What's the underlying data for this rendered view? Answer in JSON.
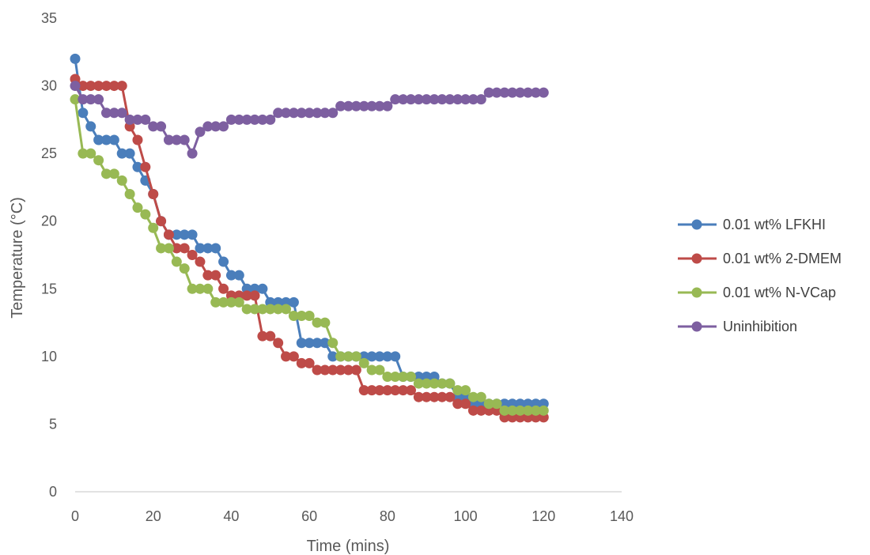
{
  "chart_data": {
    "type": "line",
    "title": "",
    "xlabel": "Time (mins)",
    "ylabel": "Temperature (°C)",
    "xlim": [
      0,
      140
    ],
    "ylim": [
      0,
      35
    ],
    "xticks": [
      "0",
      "20",
      "40",
      "60",
      "80",
      "100",
      "120",
      "140"
    ],
    "yticks": [
      "0",
      "5",
      "10",
      "15",
      "20",
      "25",
      "30",
      "35"
    ],
    "grid": false,
    "legend_position": "right",
    "series": [
      {
        "name": "0.01 wt% LFKHI",
        "color": "#4a7ebb",
        "x": [
          0,
          2,
          4,
          6,
          8,
          10,
          12,
          14,
          16,
          18,
          20,
          22,
          24,
          26,
          28,
          30,
          32,
          34,
          36,
          38,
          40,
          42,
          44,
          46,
          48,
          50,
          52,
          54,
          56,
          58,
          60,
          62,
          64,
          66,
          68,
          70,
          72,
          74,
          76,
          78,
          80,
          82,
          84,
          86,
          88,
          90,
          92,
          94,
          96,
          98,
          100,
          102,
          104,
          106,
          108,
          110,
          112,
          114,
          116,
          118,
          120
        ],
        "y": [
          32,
          28,
          27,
          26,
          26,
          26,
          25,
          25,
          24,
          23,
          22,
          20,
          19,
          19,
          19,
          19,
          18,
          18,
          18,
          17,
          16,
          16,
          15,
          15,
          15,
          14,
          14,
          14,
          14,
          11,
          11,
          11,
          11,
          10,
          10,
          10,
          10,
          10,
          10,
          10,
          10,
          10,
          8.5,
          8.5,
          8.5,
          8.5,
          8.5,
          8,
          8,
          7,
          7,
          6.5,
          6.5,
          6.5,
          6.5,
          6.5,
          6.5,
          6.5,
          6.5,
          6.5,
          6.5
        ]
      },
      {
        "name": "0.01 wt% 2-DMEM",
        "color": "#be4b48",
        "x": [
          0,
          2,
          4,
          6,
          8,
          10,
          12,
          14,
          16,
          18,
          20,
          22,
          24,
          26,
          28,
          30,
          32,
          34,
          36,
          38,
          40,
          42,
          44,
          46,
          48,
          50,
          52,
          54,
          56,
          58,
          60,
          62,
          64,
          66,
          68,
          70,
          72,
          74,
          76,
          78,
          80,
          82,
          84,
          86,
          88,
          90,
          92,
          94,
          96,
          98,
          100,
          102,
          104,
          106,
          108,
          110,
          112,
          114,
          116,
          118,
          120
        ],
        "y": [
          30.5,
          30,
          30,
          30,
          30,
          30,
          30,
          27,
          26,
          24,
          22,
          20,
          19,
          18,
          18,
          17.5,
          17,
          16,
          16,
          15,
          14.5,
          14.5,
          14.5,
          14.5,
          11.5,
          11.5,
          11,
          10,
          10,
          9.5,
          9.5,
          9,
          9,
          9,
          9,
          9,
          9,
          7.5,
          7.5,
          7.5,
          7.5,
          7.5,
          7.5,
          7.5,
          7,
          7,
          7,
          7,
          7,
          6.5,
          6.5,
          6,
          6,
          6,
          6,
          5.5,
          5.5,
          5.5,
          5.5,
          5.5,
          5.5
        ]
      },
      {
        "name": "0.01 wt% N-VCap",
        "color": "#98b954",
        "x": [
          0,
          2,
          4,
          6,
          8,
          10,
          12,
          14,
          16,
          18,
          20,
          22,
          24,
          26,
          28,
          30,
          32,
          34,
          36,
          38,
          40,
          42,
          44,
          46,
          48,
          50,
          52,
          54,
          56,
          58,
          60,
          62,
          64,
          66,
          68,
          70,
          72,
          74,
          76,
          78,
          80,
          82,
          84,
          86,
          88,
          90,
          92,
          94,
          96,
          98,
          100,
          102,
          104,
          106,
          108,
          110,
          112,
          114,
          116,
          118,
          120
        ],
        "y": [
          29,
          25,
          25,
          24.5,
          23.5,
          23.5,
          23,
          22,
          21,
          20.5,
          19.5,
          18,
          18,
          17,
          16.5,
          15,
          15,
          15,
          14,
          14,
          14,
          14,
          13.5,
          13.5,
          13.5,
          13.5,
          13.5,
          13.5,
          13,
          13,
          13,
          12.5,
          12.5,
          11,
          10,
          10,
          10,
          9.5,
          9,
          9,
          8.5,
          8.5,
          8.5,
          8.5,
          8,
          8,
          8,
          8,
          8,
          7.5,
          7.5,
          7,
          7,
          6.5,
          6.5,
          6,
          6,
          6,
          6,
          6,
          6
        ]
      },
      {
        "name": "Uninhibition",
        "color": "#7d5fa0",
        "x": [
          0,
          2,
          4,
          6,
          8,
          10,
          12,
          14,
          16,
          18,
          20,
          22,
          24,
          26,
          28,
          30,
          32,
          34,
          36,
          38,
          40,
          42,
          44,
          46,
          48,
          50,
          52,
          54,
          56,
          58,
          60,
          62,
          64,
          66,
          68,
          70,
          72,
          74,
          76,
          78,
          80,
          82,
          84,
          86,
          88,
          90,
          92,
          94,
          96,
          98,
          100,
          102,
          104,
          106,
          108,
          110,
          112,
          114,
          116,
          118,
          120
        ],
        "y": [
          30,
          29,
          29,
          29,
          28,
          28,
          28,
          27.5,
          27.5,
          27.5,
          27,
          27,
          26,
          26,
          26,
          25,
          26.6,
          27,
          27,
          27,
          27.5,
          27.5,
          27.5,
          27.5,
          27.5,
          27.5,
          28,
          28,
          28,
          28,
          28,
          28,
          28,
          28,
          28.5,
          28.5,
          28.5,
          28.5,
          28.5,
          28.5,
          28.5,
          29,
          29,
          29,
          29,
          29,
          29,
          29,
          29,
          29,
          29,
          29,
          29,
          29.5,
          29.5,
          29.5,
          29.5,
          29.5,
          29.5,
          29.5,
          29.5
        ]
      }
    ]
  }
}
